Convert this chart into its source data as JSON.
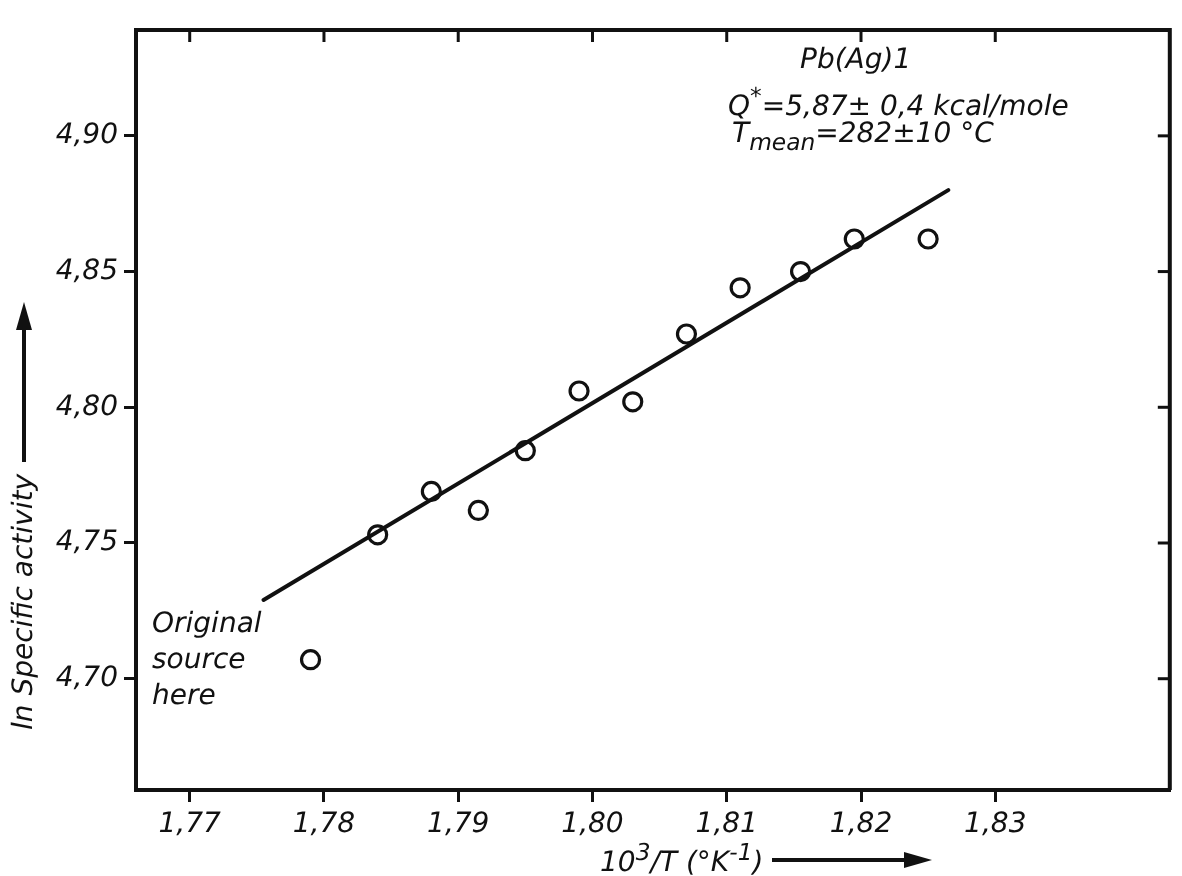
{
  "chart_data": {
    "type": "scatter",
    "xlabel": "10$^{3}$/T (°K$^{-1}$)",
    "ylabel": "ln Specific activity",
    "annotations": [
      "Pb(Ag)1",
      "Q$^{*}$=5,87± 0,4 kcal/mole",
      "T$_{mean}$=282±10 °C",
      "Original source here"
    ],
    "xlim": [
      1.766,
      1.843
    ],
    "ylim": [
      4.659,
      4.939
    ],
    "xticks": [
      {
        "value": 1.77,
        "label": "1,77"
      },
      {
        "value": 1.78,
        "label": "1,78"
      },
      {
        "value": 1.79,
        "label": "1,79"
      },
      {
        "value": 1.8,
        "label": "1,80"
      },
      {
        "value": 1.81,
        "label": "1,81"
      },
      {
        "value": 1.82,
        "label": "1,82"
      },
      {
        "value": 1.83,
        "label": "1,83"
      }
    ],
    "yticks": [
      {
        "value": 4.7,
        "label": "4,70"
      },
      {
        "value": 4.75,
        "label": "4,75"
      },
      {
        "value": 4.8,
        "label": "4,80"
      },
      {
        "value": 4.85,
        "label": "4,85"
      },
      {
        "value": 4.9,
        "label": "4,90"
      }
    ],
    "grid": false,
    "legend": false,
    "marker": "circle",
    "series": [
      {
        "color": "#111111",
        "x": [
          1.779,
          1.784,
          1.788,
          1.7915,
          1.795,
          1.799,
          1.803,
          1.807,
          1.811,
          1.8155,
          1.8195,
          1.825
        ],
        "values": [
          4.707,
          4.753,
          4.769,
          4.762,
          4.784,
          4.806,
          4.802,
          4.827,
          4.844,
          4.85,
          4.862,
          4.862
        ]
      },
      {
        "type": "line",
        "color": "#111111",
        "marker": "none",
        "line_style": "solid",
        "x": [
          1.7755,
          1.8265
        ],
        "values": [
          4.729,
          4.88
        ]
      }
    ]
  }
}
